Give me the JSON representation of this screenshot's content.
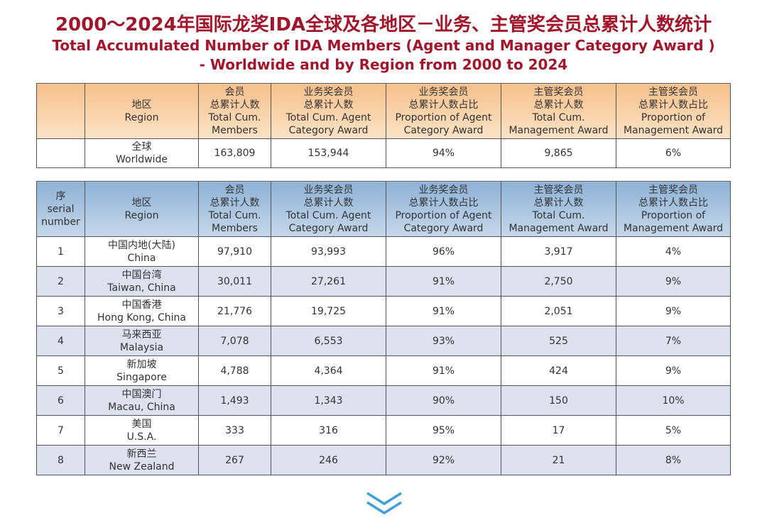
{
  "title_cn": "2000～2024年国际龙奖IDA全球及各地区－业务、主管奖会员总累计人数统计",
  "title_en_line1": "Total Accumulated Number of IDA Members (Agent and Manager Category Award )",
  "title_en_line2": "- Worldwide and by Region from 2000 to 2024",
  "headers": {
    "serial": [
      "序",
      "serial",
      "number"
    ],
    "region": [
      "地区",
      "Region"
    ],
    "members": [
      "会员",
      "总累计人数",
      "Total Cum.",
      "Members"
    ],
    "agent": [
      "业务奖会员",
      "总累计人数",
      "Total Cum. Agent",
      "Category Award"
    ],
    "agent_prop": [
      "业务奖会员",
      "总累计人数占比",
      "Proportion of Agent",
      "Category Award"
    ],
    "manager": [
      "主管奖会员",
      "总累计人数",
      "Total Cum.",
      "Management Award"
    ],
    "manager_prop": [
      "主管奖会员",
      "总累计人数占比",
      "Proportion of",
      "Management Award"
    ]
  },
  "worldwide": {
    "region_cn": "全球",
    "region_en": "Worldwide",
    "members": "163,809",
    "agent": "153,944",
    "agent_prop": "94%",
    "manager": "9,865",
    "manager_prop": "6%"
  },
  "regions": [
    {
      "serial": "1",
      "region_cn": "中国内地(大陆)",
      "region_en": "China",
      "members": "97,910",
      "agent": "93,993",
      "agent_prop": "96%",
      "manager": "3,917",
      "manager_prop": "4%"
    },
    {
      "serial": "2",
      "region_cn": "中国台湾",
      "region_en": "Taiwan, China",
      "members": "30,011",
      "agent": "27,261",
      "agent_prop": "91%",
      "manager": "2,750",
      "manager_prop": "9%"
    },
    {
      "serial": "3",
      "region_cn": "中国香港",
      "region_en": "Hong Kong, China",
      "members": "21,776",
      "agent": "19,725",
      "agent_prop": "91%",
      "manager": "2,051",
      "manager_prop": "9%"
    },
    {
      "serial": "4",
      "region_cn": "马来西亚",
      "region_en": "Malaysia",
      "members": "7,078",
      "agent": "6,553",
      "agent_prop": "93%",
      "manager": "525",
      "manager_prop": "7%"
    },
    {
      "serial": "5",
      "region_cn": "新加坡",
      "region_en": "Singapore",
      "members": "4,788",
      "agent": "4,364",
      "agent_prop": "91%",
      "manager": "424",
      "manager_prop": "9%"
    },
    {
      "serial": "6",
      "region_cn": "中国澳门",
      "region_en": "Macau, China",
      "members": "1,493",
      "agent": "1,343",
      "agent_prop": "90%",
      "manager": "150",
      "manager_prop": "10%"
    },
    {
      "serial": "7",
      "region_cn": "美国",
      "region_en": "U.S.A.",
      "members": "333",
      "agent": "316",
      "agent_prop": "95%",
      "manager": "17",
      "manager_prop": "5%"
    },
    {
      "serial": "8",
      "region_cn": "新西兰",
      "region_en": "New Zealand",
      "members": "267",
      "agent": "246",
      "agent_prop": "92%",
      "manager": "21",
      "manager_prop": "8%"
    }
  ],
  "colors": {
    "title": "#a3152a",
    "world_header": "#f6c08c",
    "region_header": "#8eb2d6",
    "stripe": "#dce2ee",
    "chevron": "#3ea0d8"
  },
  "icons": {
    "scroll_down": "chevron-double-down-icon"
  }
}
